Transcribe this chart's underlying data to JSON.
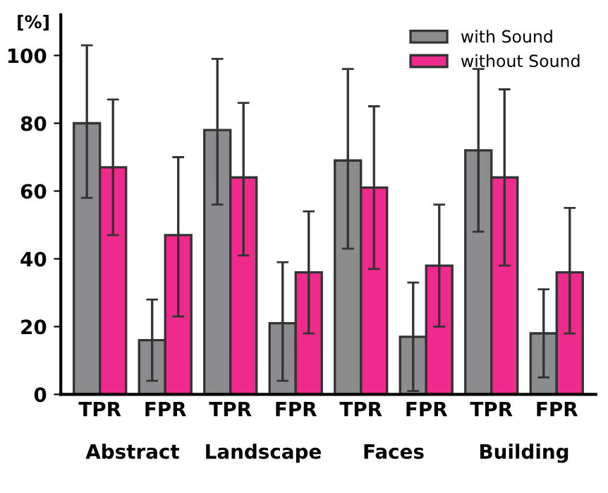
{
  "chart_data": {
    "type": "bar",
    "ylabel": "[%]",
    "categories": [
      "TPR",
      "FPR",
      "TPR",
      "FPR",
      "TPR",
      "FPR",
      "TPR",
      "FPR"
    ],
    "series": [
      {
        "name": "with Sound",
        "color": "#8c8c8e",
        "values": [
          80,
          16,
          78,
          21,
          69,
          17,
          72,
          18
        ],
        "errors": [
          [
            58,
            103
          ],
          [
            4,
            28
          ],
          [
            56,
            99
          ],
          [
            4,
            39
          ],
          [
            43,
            96
          ],
          [
            1,
            33
          ],
          [
            48,
            96
          ],
          [
            5,
            31
          ]
        ]
      },
      {
        "name": "without Sound",
        "color": "#ee2a8c",
        "values": [
          67,
          47,
          64,
          36,
          61,
          38,
          64,
          36
        ],
        "errors": [
          [
            47,
            87
          ],
          [
            23,
            70
          ],
          [
            41,
            86
          ],
          [
            18,
            54
          ],
          [
            37,
            85
          ],
          [
            20,
            56
          ],
          [
            38,
            90
          ],
          [
            18,
            55
          ]
        ]
      }
    ],
    "annotations": [
      "Abstract",
      "Landscape",
      "Faces",
      "Building"
    ],
    "ylim": [
      0,
      112
    ],
    "yticks": [
      0,
      20,
      40,
      60,
      80,
      100
    ],
    "grid": false,
    "legend": "top right"
  }
}
